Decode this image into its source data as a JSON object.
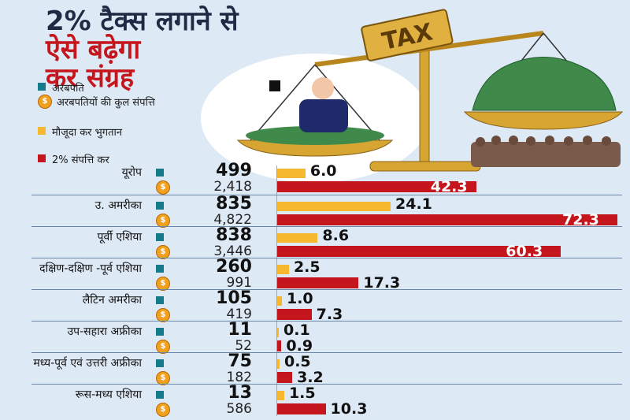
{
  "title": [
    "2% टैक्स लगाने से",
    "ऐसे बढ़ेगा",
    "कर संग्रह"
  ],
  "legend": [
    {
      "label": "अरबपति",
      "color": "#157a8a",
      "icon": "square"
    },
    {
      "label": "अरबपतियों की कुल संपत्ति",
      "color": "#f0a020",
      "icon": "coin-icon"
    },
    {
      "label": "मौजूदा कर भुगतान",
      "color": "#f5b82e",
      "icon": "square"
    },
    {
      "label": "2% संपत्ति कर",
      "color": "#c4161c",
      "icon": "square"
    }
  ],
  "illustration": {
    "scale_label": "TAX",
    "coin_symbol": "$"
  },
  "chart_data": {
    "type": "bar",
    "categories": [
      "यूरोप",
      "उ. अमरीका",
      "पूर्वी एशिया",
      "दक्षिण-दक्षिण -पूर्व एशिया",
      "लैटिन अमरीका",
      "उप-सहारा अफ्रीका",
      "मध्य-पूर्व एवं उत्तरी अफ्रीका",
      "रूस-मध्य एशिया"
    ],
    "billionaires": [
      "499",
      "835",
      "838",
      "260",
      "105",
      "11",
      "75",
      "13"
    ],
    "total_wealth": [
      "2,418",
      "4,822",
      "3,446",
      "991",
      "419",
      "52",
      "182",
      "586"
    ],
    "series": [
      {
        "name": "मौजूदा कर भुगतान",
        "color": "#f5b82e",
        "values": [
          6.0,
          24.1,
          8.6,
          2.5,
          1.0,
          0.1,
          0.5,
          1.5
        ],
        "labels": [
          "6.0",
          "24.1",
          "8.6",
          "2.5",
          "1.0",
          "0.1",
          "0.5",
          "1.5"
        ]
      },
      {
        "name": "2% संपत्ति कर",
        "color": "#c4161c",
        "values": [
          42.3,
          72.3,
          60.3,
          17.3,
          7.3,
          0.9,
          3.2,
          10.3
        ],
        "labels": [
          "42.3",
          "72.3",
          "60.3",
          "17.3",
          "7.3",
          "0.9",
          "3.2",
          "10.3"
        ]
      }
    ]
  }
}
